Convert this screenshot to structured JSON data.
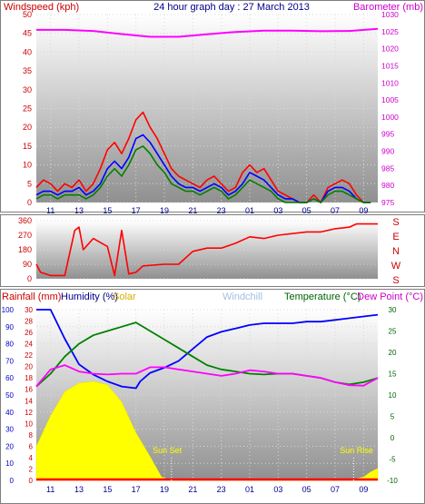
{
  "chart_data": [
    {
      "type": "line",
      "title": "24 hour graph day : 27 March 2013",
      "left_label": "Windspeed (kph)",
      "right_label": "Barometer (mb)",
      "x_ticks": [
        "11",
        "13",
        "15",
        "17",
        "19",
        "21",
        "23",
        "01",
        "03",
        "05",
        "07",
        "09"
      ],
      "y_left_ticks": [
        0,
        5,
        10,
        15,
        20,
        25,
        30,
        35,
        40,
        45,
        50
      ],
      "y_right_ticks": [
        975,
        980,
        985,
        990,
        995,
        1000,
        1005,
        1010,
        1015,
        1020,
        1025,
        1030
      ],
      "ylim_left": [
        0,
        50
      ],
      "ylim_right": [
        975,
        1030
      ],
      "grid": true,
      "series": [
        {
          "name": "Windspeed (kph)",
          "axis": "left",
          "color": "#ff0000",
          "x": [
            10,
            10.5,
            11,
            11.5,
            12,
            12.5,
            13,
            13.5,
            14,
            14.5,
            15,
            15.5,
            16,
            16.5,
            17,
            17.5,
            18,
            18.5,
            19,
            19.5,
            20,
            20.5,
            21,
            21.5,
            22,
            22.5,
            23,
            23.5,
            24,
            24.5,
            25,
            25.5,
            26,
            26.5,
            27,
            27.5,
            28,
            28.5,
            29,
            29.5,
            30,
            30.5,
            31,
            31.5,
            32,
            32.5,
            33,
            33.5
          ],
          "y": [
            4,
            6,
            5,
            3,
            5,
            4,
            6,
            3,
            5,
            9,
            14,
            16,
            13,
            17,
            22,
            24,
            20,
            17,
            13,
            9,
            7,
            6,
            5,
            4,
            6,
            7,
            5,
            3,
            4,
            8,
            10,
            8,
            9,
            6,
            3,
            2,
            1,
            0,
            0,
            2,
            0,
            4,
            5,
            6,
            5,
            2,
            0,
            0
          ]
        },
        {
          "name": "Gust",
          "axis": "left",
          "color": "#0000ff",
          "x": [
            10,
            10.5,
            11,
            11.5,
            12,
            12.5,
            13,
            13.5,
            14,
            14.5,
            15,
            15.5,
            16,
            16.5,
            17,
            17.5,
            18,
            18.5,
            19,
            19.5,
            20,
            20.5,
            21,
            21.5,
            22,
            22.5,
            23,
            23.5,
            24,
            24.5,
            25,
            25.5,
            26,
            26.5,
            27,
            27.5,
            28,
            28.5,
            29,
            29.5,
            30,
            30.5,
            31,
            31.5,
            32,
            32.5,
            33,
            33.5
          ],
          "y": [
            2,
            3,
            3,
            2,
            3,
            3,
            4,
            2,
            3,
            5,
            9,
            11,
            9,
            12,
            17,
            18,
            16,
            13,
            10,
            7,
            5,
            4,
            4,
            3,
            4,
            5,
            4,
            2,
            3,
            5,
            8,
            7,
            6,
            4,
            2,
            1,
            1,
            0,
            0,
            1,
            0,
            3,
            4,
            4,
            3,
            1,
            0,
            0
          ]
        },
        {
          "name": "Average",
          "axis": "left",
          "color": "#008000",
          "x": [
            10,
            10.5,
            11,
            11.5,
            12,
            12.5,
            13,
            13.5,
            14,
            14.5,
            15,
            15.5,
            16,
            16.5,
            17,
            17.5,
            18,
            18.5,
            19,
            19.5,
            20,
            20.5,
            21,
            21.5,
            22,
            22.5,
            23,
            23.5,
            24,
            24.5,
            25,
            25.5,
            26,
            26.5,
            27,
            27.5,
            28,
            28.5,
            29,
            29.5,
            30,
            30.5,
            31,
            31.5,
            32,
            32.5,
            33,
            33.5
          ],
          "y": [
            1,
            2,
            2,
            1,
            2,
            2,
            2,
            1,
            2,
            4,
            7,
            9,
            7,
            10,
            14,
            15,
            13,
            10,
            8,
            5,
            4,
            3,
            3,
            2,
            3,
            4,
            3,
            1,
            2,
            4,
            6,
            5,
            4,
            3,
            1,
            0,
            0,
            0,
            0,
            1,
            0,
            2,
            3,
            3,
            2,
            1,
            0,
            0
          ]
        },
        {
          "name": "Barometer (mb)",
          "axis": "right",
          "color": "#ff00ff",
          "x": [
            10,
            12,
            14,
            16,
            18,
            20,
            22,
            24,
            26,
            28,
            30,
            32,
            34
          ],
          "y": [
            1025.5,
            1025.5,
            1025.2,
            1024.3,
            1023.5,
            1023.5,
            1024.2,
            1024.9,
            1025.3,
            1025.3,
            1025.1,
            1025.2,
            1025.8
          ]
        }
      ]
    },
    {
      "type": "line",
      "right_labels": [
        "S",
        "E",
        "N",
        "W",
        "S"
      ],
      "y_left_ticks": [
        0,
        90,
        180,
        270,
        360
      ],
      "ylim": [
        0,
        360
      ],
      "series": [
        {
          "name": "Wind Direction",
          "color": "#ff0000",
          "x": [
            10,
            10.3,
            11,
            12,
            12.7,
            13,
            13.3,
            14,
            15,
            15.5,
            16,
            16.5,
            17,
            17.5,
            19,
            20,
            21,
            22,
            23,
            24,
            25,
            26,
            27,
            29,
            30,
            31,
            32,
            32.5,
            34
          ],
          "y": [
            90,
            40,
            20,
            20,
            300,
            320,
            180,
            250,
            200,
            20,
            300,
            30,
            40,
            80,
            90,
            90,
            170,
            190,
            190,
            220,
            260,
            250,
            270,
            290,
            290,
            310,
            320,
            340,
            340
          ]
        }
      ]
    },
    {
      "type": "line",
      "labels": {
        "rainfall": "Rainfall (mm)",
        "humidity": "Humidity (%)",
        "solar": "Solar",
        "windchill": "Windchill",
        "temperature": "Temperature (°C)",
        "dewpoint": "Dew Point (°C)"
      },
      "annotations": [
        "Sun Set",
        "Sun Rise"
      ],
      "x_ticks": [
        "11",
        "13",
        "15",
        "17",
        "19",
        "21",
        "23",
        "01",
        "03",
        "05",
        "07",
        "09"
      ],
      "y_humidity_ticks": [
        0,
        10,
        20,
        30,
        40,
        50,
        60,
        70,
        80,
        90,
        100
      ],
      "y_rain_ticks": [
        0,
        2,
        4,
        6,
        8,
        10,
        12,
        14,
        16,
        18,
        20,
        22,
        24,
        26,
        28,
        30
      ],
      "y_temp_ticks": [
        -10,
        -5,
        0,
        5,
        10,
        15,
        20,
        25,
        30
      ],
      "ylim_humidity": [
        0,
        100
      ],
      "ylim_temp": [
        -10,
        30
      ],
      "series": [
        {
          "name": "Humidity (%)",
          "axis": "humidity",
          "color": "#0000ff",
          "x": [
            10,
            11,
            12,
            13,
            14,
            15,
            16,
            17,
            17.3,
            18,
            19,
            20,
            21,
            22,
            23,
            24,
            25,
            26,
            27,
            28,
            29,
            30,
            31,
            32,
            33,
            34
          ],
          "y": [
            100,
            100,
            83,
            68,
            62,
            58,
            55,
            54,
            58,
            63,
            66,
            70,
            77,
            84,
            87,
            89,
            91,
            92,
            92,
            92,
            93,
            93,
            94,
            95,
            96,
            97
          ]
        },
        {
          "name": "Temperature (°C)",
          "axis": "temp",
          "color": "#008000",
          "x": [
            10,
            11,
            12,
            13,
            14,
            15,
            16,
            17,
            18,
            19,
            20,
            21,
            22,
            23,
            24,
            25,
            26,
            27,
            28,
            29,
            30,
            31,
            32,
            33,
            34
          ],
          "y": [
            12,
            15,
            19,
            22,
            24,
            25,
            26,
            27,
            25,
            23,
            21,
            19,
            17,
            16,
            15.5,
            15,
            14.8,
            15,
            15,
            14.5,
            14,
            13,
            12.5,
            13,
            14
          ]
        },
        {
          "name": "Dew Point (°C)",
          "axis": "temp",
          "color": "#ff00ff",
          "x": [
            10,
            11,
            12,
            13,
            14,
            15,
            16,
            17,
            18,
            19,
            20,
            21,
            22,
            23,
            24,
            25,
            26,
            27,
            28,
            29,
            30,
            31,
            32,
            33,
            34
          ],
          "y": [
            12,
            16,
            17,
            15.5,
            15,
            14.8,
            15,
            15,
            16.5,
            16.5,
            16,
            15.5,
            15,
            14.5,
            15,
            15.8,
            15.5,
            15,
            15,
            14.5,
            14,
            13,
            12.3,
            12.2,
            14
          ]
        },
        {
          "name": "Solar",
          "axis": "humidity",
          "color": "#ffff00",
          "x": [
            10,
            11,
            12,
            13,
            14,
            15,
            16,
            17,
            18,
            18.8,
            19.5,
            32,
            33,
            33.5,
            34
          ],
          "y": [
            20,
            38,
            52,
            57,
            58,
            56,
            46,
            28,
            14,
            2,
            0,
            0,
            2,
            5,
            7
          ]
        },
        {
          "name": "Rainfall (mm)",
          "axis": "rain",
          "color": "#ff0000",
          "x": [
            10,
            34
          ],
          "y": [
            0,
            0
          ]
        }
      ]
    }
  ]
}
